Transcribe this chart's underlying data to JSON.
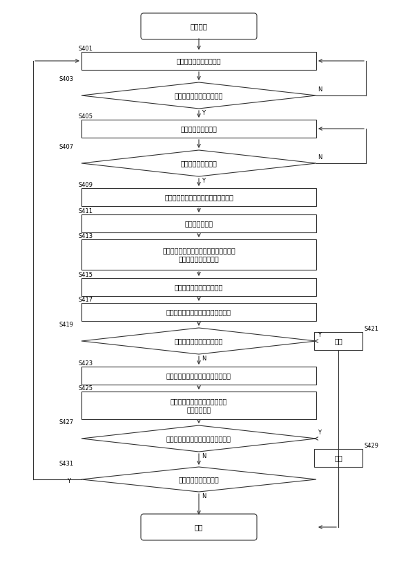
{
  "bg_color": "#ffffff",
  "line_color": "#333333",
  "lw": 0.8,
  "font_size": 7.0,
  "small_font_size": 6.0,
  "nodes": {
    "start": {
      "label": "スタート"
    },
    "S401": {
      "label": "位置決め指示情報を送信"
    },
    "S403": {
      "label": "位置決め完了情報を受信？"
    },
    "S405": {
      "label": "印刷指示情報を送信"
    },
    "S407": {
      "label": "印刷完了情報受信？"
    },
    "S409": {
      "label": "開始位置領域及び終了位置領域を撮像"
    },
    "S411": {
      "label": "撮像情報を取得"
    },
    "S413": {
      "label": "開始位置領域及び終了位置領域における\n印刷画像の品質を評価"
    },
    "S415": {
      "label": "待機時間の加減時間を取得"
    },
    "S417": {
      "label": "待機時間に加減時間を加算又は減算"
    },
    "S419": {
      "label": "待機時間が第３閾値以上？"
    },
    "S421": {
      "label": "報知"
    },
    "S423": {
      "label": "位置決め継続時間の加減時間を取得"
    },
    "S425": {
      "label": "位置決め継続時間に加減時間を\n加算又は減算"
    },
    "S427": {
      "label": "位置決め継続時間が第４閾値以上？"
    },
    "S429": {
      "label": "報知"
    },
    "S431": {
      "label": "次の印刷対象物あり？"
    },
    "end": {
      "label": "終了"
    }
  }
}
